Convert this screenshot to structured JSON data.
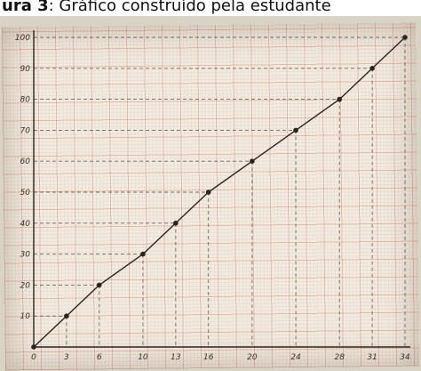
{
  "caption": {
    "bold": "ura 3",
    "rest": ": Gráfico construído pela estudante"
  },
  "colors": {
    "line": "#2a2420",
    "guide": "#4a3f36",
    "paper": "#f1ece2",
    "grid": "#c85a3c"
  },
  "chart_data": {
    "type": "line",
    "title": "",
    "xlabel": "",
    "ylabel": "",
    "x": [
      0,
      3,
      6,
      10,
      13,
      16,
      20,
      24,
      28,
      31,
      34
    ],
    "y": [
      0,
      10,
      20,
      30,
      40,
      50,
      60,
      70,
      80,
      90,
      100
    ],
    "xticks": [
      "0",
      "3",
      "6",
      "10",
      "13",
      "16",
      "20",
      "24",
      "28",
      "31",
      "34"
    ],
    "yticks": [
      "10",
      "20",
      "30",
      "40",
      "50",
      "60",
      "70",
      "80",
      "90",
      "100"
    ],
    "xlim": [
      0,
      34
    ],
    "ylim": [
      0,
      100
    ],
    "grid": true,
    "dashed_guides": true,
    "markers": true
  }
}
